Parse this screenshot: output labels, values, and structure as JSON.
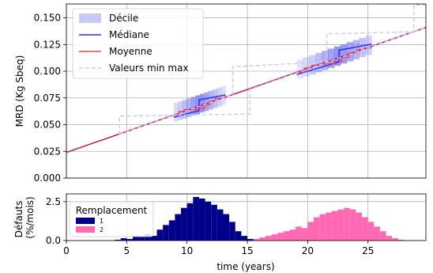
{
  "chart_data": [
    {
      "type": "line",
      "ylabel": "MRD (Kg Sbeq)",
      "xlim": [
        0,
        29.8
      ],
      "ylim": [
        0,
        0.163
      ],
      "yticks": [
        0.0,
        0.025,
        0.05,
        0.075,
        0.1,
        0.125,
        0.15
      ],
      "ytick_labels": [
        "0.000",
        "0.025",
        "0.050",
        "0.075",
        "0.100",
        "0.125",
        "0.150"
      ],
      "grid": true,
      "legend_position": "top-left",
      "legend": [
        {
          "label": "Décile",
          "kind": "band",
          "color": "#c9c9f5"
        },
        {
          "label": "Médiane",
          "kind": "line",
          "color": "#2b2bff"
        },
        {
          "label": "Moyenne",
          "kind": "line",
          "color": "#ff4040"
        },
        {
          "label": "Valeurs min max",
          "kind": "dashed",
          "color": "#c8c8f2"
        }
      ],
      "series": [
        {
          "name": "Moyenne",
          "color": "#c02060",
          "x": [
            0,
            29.8
          ],
          "y": [
            0.024,
            0.141
          ]
        },
        {
          "name": "Valeurs min max",
          "color": "#c8c8f2",
          "x": [
            4.4,
            4.4,
            15.2,
            15.2,
            29.8
          ],
          "y": [
            0.041,
            0.058,
            0.06,
            0.083,
            0.141
          ]
        },
        {
          "name": "Valeurs min max",
          "color": "#c8c8f2",
          "x": [
            4.4,
            13.8,
            13.8,
            21.6,
            21.6,
            28.8,
            28.8,
            29.8
          ],
          "y": [
            0.041,
            0.078,
            0.104,
            0.109,
            0.135,
            0.137,
            0.162,
            0.162
          ]
        }
      ],
      "decile_clusters": [
        {
          "x_start": 8.9,
          "x_end": 13.2,
          "center": 11.0,
          "y_start": 0.059,
          "y_end": 0.076,
          "median_jump": 0.01
        },
        {
          "x_start": 19.1,
          "x_end": 25.3,
          "center": 22.6,
          "y_start": 0.107,
          "y_end": 0.13,
          "median_jump": 0.011
        }
      ]
    },
    {
      "type": "bar",
      "ylabel": "Défauts\n(%/mois)",
      "xlabel": "time (years)",
      "xlim": [
        0,
        29.8
      ],
      "ylim": [
        0,
        3.0
      ],
      "xticks": [
        0,
        5,
        10,
        15,
        20,
        25
      ],
      "xtick_labels": [
        "0",
        "5",
        "10",
        "15",
        "20",
        "25"
      ],
      "yticks": [
        0.0,
        2.5
      ],
      "ytick_labels": [
        "0.0",
        "2.5"
      ],
      "grid": true,
      "legend_position": "top-left",
      "legend_title": "Remplacement",
      "bin_width": 0.5,
      "series": [
        {
          "name": "1",
          "color": "#00008b",
          "x": [
            4.0,
            4.5,
            5.0,
            5.5,
            6.0,
            6.5,
            7.0,
            7.5,
            8.0,
            8.5,
            9.0,
            9.5,
            10.0,
            10.5,
            11.0,
            11.5,
            12.0,
            12.5,
            13.0,
            13.5,
            14.0,
            14.5,
            15.0
          ],
          "values": [
            0.05,
            0.15,
            0.1,
            0.3,
            0.25,
            0.4,
            0.3,
            0.7,
            1.0,
            1.3,
            1.7,
            2.1,
            2.4,
            2.8,
            2.7,
            2.5,
            2.3,
            2.0,
            1.7,
            1.2,
            0.6,
            0.3,
            0.1
          ]
        },
        {
          "name": "2",
          "color": "#ff69b4",
          "x": [
            15.5,
            16.0,
            16.5,
            17.0,
            17.5,
            18.0,
            18.5,
            19.0,
            19.5,
            20.0,
            20.5,
            21.0,
            21.5,
            22.0,
            22.5,
            23.0,
            23.5,
            24.0,
            24.5,
            25.0,
            25.5,
            26.0,
            26.5,
            27.0,
            27.5
          ],
          "values": [
            0.1,
            0.2,
            0.3,
            0.4,
            0.5,
            0.6,
            0.7,
            0.9,
            0.8,
            1.2,
            1.5,
            1.7,
            1.8,
            1.9,
            2.0,
            2.1,
            2.0,
            1.8,
            1.5,
            1.2,
            0.9,
            0.6,
            0.3,
            0.15,
            0.05
          ]
        }
      ]
    }
  ]
}
